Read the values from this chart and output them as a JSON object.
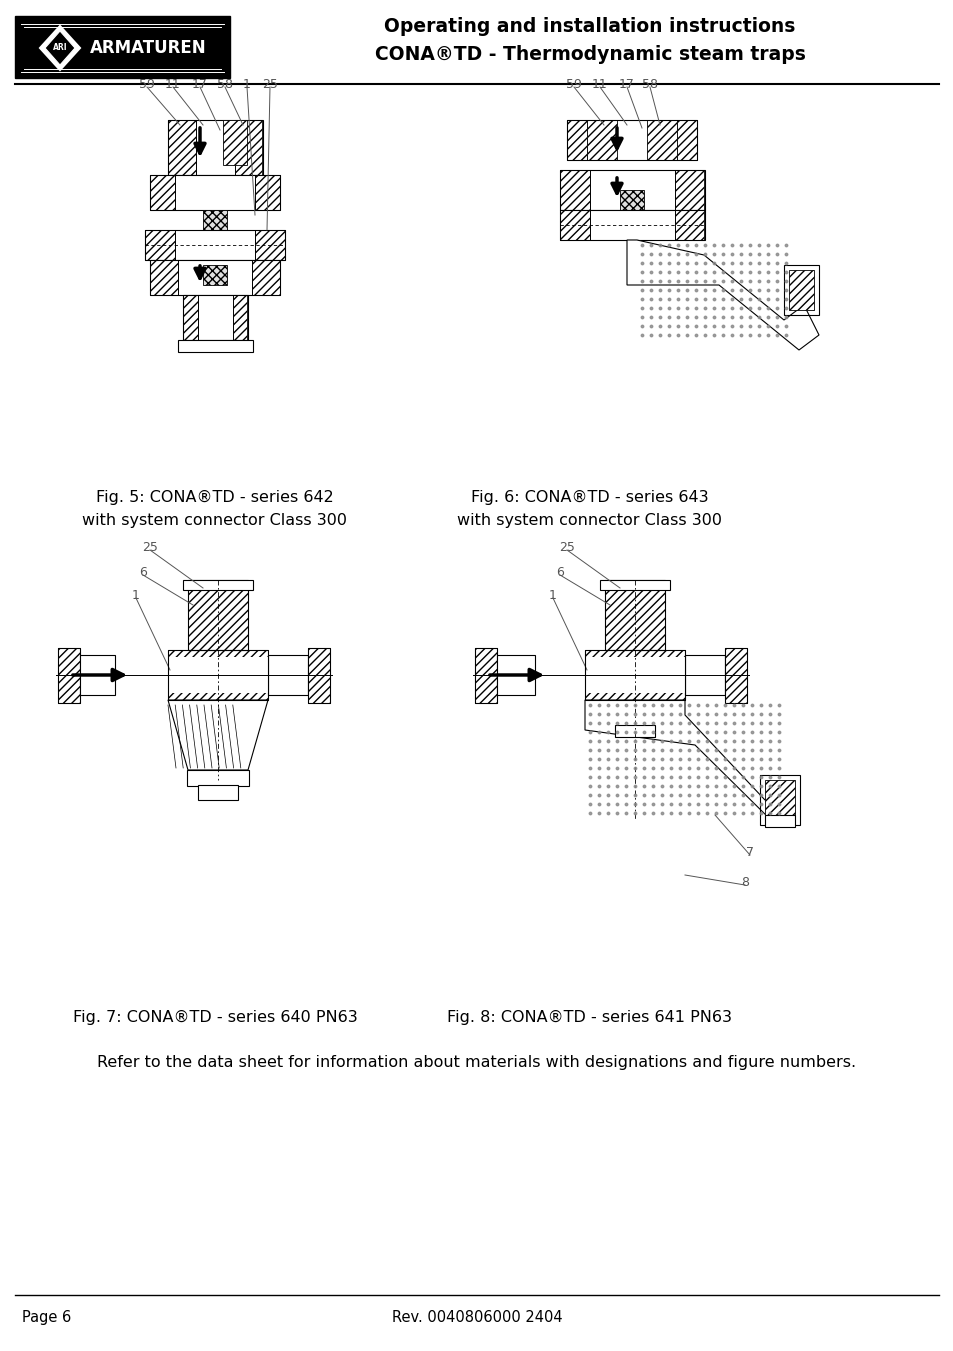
{
  "title_line1": "Operating and installation instructions",
  "title_line2": "CONA®TD - Thermodynamic steam traps",
  "fig5_caption_line1": "Fig. 5: CONA®TD - series 642",
  "fig5_caption_line2": "with system connector Class 300",
  "fig6_caption_line1": "Fig. 6: CONA®TD - series 643",
  "fig6_caption_line2": "with system connector Class 300",
  "fig7_caption": "Fig. 7: CONA®TD - series 640 PN63",
  "fig8_caption": "Fig. 8: CONA®TD - series 641 PN63",
  "bottom_note": "Refer to the data sheet for information about materials with designations and figure numbers.",
  "footer_left": "Page 6",
  "footer_center": "Rev. 0040806000 2404",
  "bg_color": "#ffffff",
  "text_color": "#000000"
}
